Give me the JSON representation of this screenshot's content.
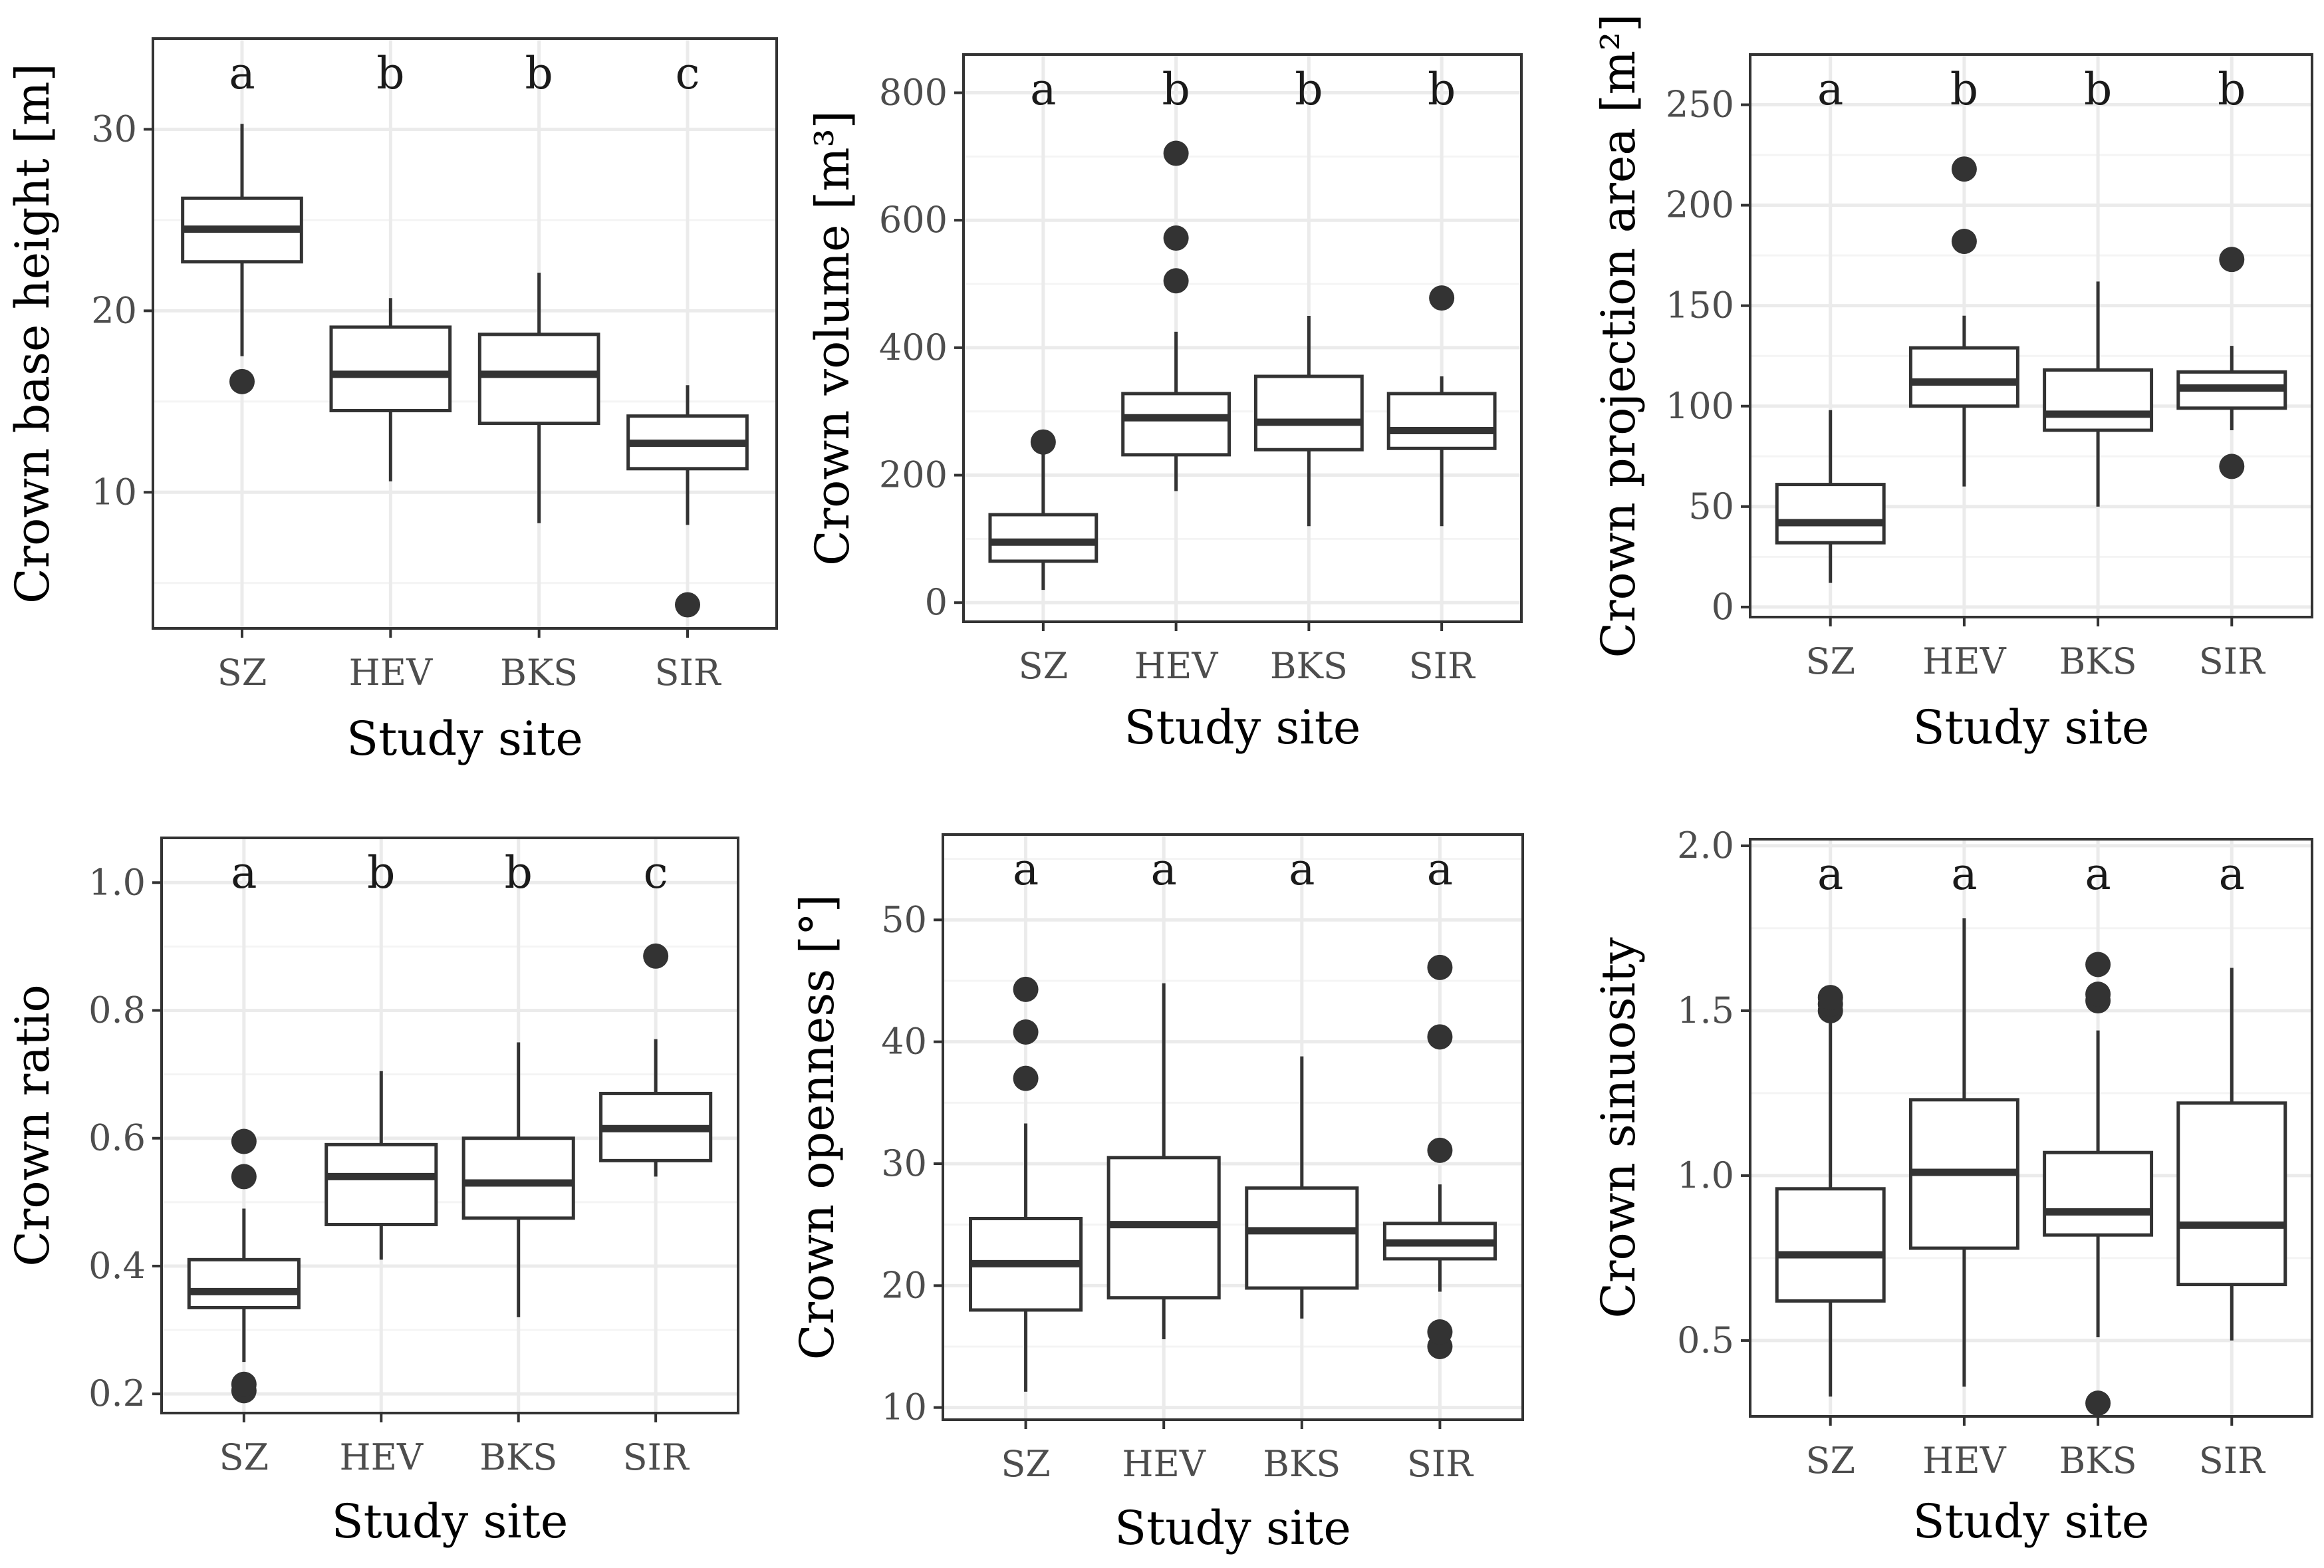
{
  "chart_data": [
    {
      "type": "boxplot",
      "ylabel": "Crown base height [m]",
      "xlabel": "Study site",
      "categories": [
        "SZ",
        "HEV",
        "BKS",
        "SIR"
      ],
      "ylim": [
        2.5,
        35
      ],
      "yticks": [
        10,
        20,
        30
      ],
      "ytick_labels": [
        "10",
        "20",
        "30"
      ],
      "grid": true,
      "boxes": [
        {
          "whisker_low": 17.5,
          "q1": 22.7,
          "median": 24.5,
          "q3": 26.2,
          "whisker_high": 30.3,
          "outliers": [
            16.1
          ]
        },
        {
          "whisker_low": 10.6,
          "q1": 14.5,
          "median": 16.5,
          "q3": 19.1,
          "whisker_high": 20.7,
          "outliers": []
        },
        {
          "whisker_low": 8.3,
          "q1": 13.8,
          "median": 16.5,
          "q3": 18.7,
          "whisker_high": 22.1,
          "outliers": []
        },
        {
          "whisker_low": 8.2,
          "q1": 11.3,
          "median": 12.7,
          "q3": 14.2,
          "whisker_high": 15.9,
          "outliers": [
            3.8
          ]
        }
      ],
      "significance": [
        "a",
        "b",
        "b",
        "c"
      ]
    },
    {
      "type": "boxplot",
      "ylabel": "Crown volume [m³]",
      "xlabel": "Study site",
      "categories": [
        "SZ",
        "HEV",
        "BKS",
        "SIR"
      ],
      "ylim": [
        -30,
        860
      ],
      "yticks": [
        0,
        200,
        400,
        600,
        800
      ],
      "ytick_labels": [
        "0",
        "200",
        "400",
        "600",
        "800"
      ],
      "grid": true,
      "boxes": [
        {
          "whisker_low": 20,
          "q1": 65,
          "median": 95,
          "q3": 138,
          "whisker_high": 240,
          "outliers": [
            252
          ]
        },
        {
          "whisker_low": 175,
          "q1": 232,
          "median": 290,
          "q3": 328,
          "whisker_high": 425,
          "outliers": [
            505,
            572,
            705
          ]
        },
        {
          "whisker_low": 120,
          "q1": 240,
          "median": 283,
          "q3": 355,
          "whisker_high": 450,
          "outliers": []
        },
        {
          "whisker_low": 120,
          "q1": 242,
          "median": 270,
          "q3": 328,
          "whisker_high": 355,
          "outliers": [
            478
          ]
        }
      ],
      "significance": [
        "a",
        "b",
        "b",
        "b"
      ]
    },
    {
      "type": "boxplot",
      "ylabel": "Crown projection area [m²]",
      "xlabel": "Study site",
      "categories": [
        "SZ",
        "HEV",
        "BKS",
        "SIR"
      ],
      "ylim": [
        -5,
        275
      ],
      "yticks": [
        0,
        50,
        100,
        150,
        200,
        250
      ],
      "ytick_labels": [
        "0",
        "50",
        "100",
        "150",
        "200",
        "250"
      ],
      "grid": true,
      "boxes": [
        {
          "whisker_low": 12,
          "q1": 32,
          "median": 42,
          "q3": 61,
          "whisker_high": 98,
          "outliers": []
        },
        {
          "whisker_low": 60,
          "q1": 100,
          "median": 112,
          "q3": 129,
          "whisker_high": 145,
          "outliers": [
            182,
            218
          ]
        },
        {
          "whisker_low": 50,
          "q1": 88,
          "median": 96,
          "q3": 118,
          "whisker_high": 162,
          "outliers": []
        },
        {
          "whisker_low": 88,
          "q1": 99,
          "median": 109,
          "q3": 117,
          "whisker_high": 130,
          "outliers": [
            70,
            173
          ]
        }
      ],
      "significance": [
        "a",
        "b",
        "b",
        "b"
      ]
    },
    {
      "type": "boxplot",
      "ylabel": "Crown ratio",
      "xlabel": "Study site",
      "categories": [
        "SZ",
        "HEV",
        "BKS",
        "SIR"
      ],
      "ylim": [
        0.17,
        1.07
      ],
      "yticks": [
        0.2,
        0.4,
        0.6,
        0.8,
        1.0
      ],
      "ytick_labels": [
        "0.2",
        "0.4",
        "0.6",
        "0.8",
        "1.0"
      ],
      "grid": true,
      "boxes": [
        {
          "whisker_low": 0.25,
          "q1": 0.335,
          "median": 0.36,
          "q3": 0.41,
          "whisker_high": 0.49,
          "outliers": [
            0.205,
            0.215,
            0.54,
            0.595
          ]
        },
        {
          "whisker_low": 0.41,
          "q1": 0.465,
          "median": 0.54,
          "q3": 0.59,
          "whisker_high": 0.705,
          "outliers": []
        },
        {
          "whisker_low": 0.32,
          "q1": 0.475,
          "median": 0.53,
          "q3": 0.6,
          "whisker_high": 0.75,
          "outliers": []
        },
        {
          "whisker_low": 0.54,
          "q1": 0.565,
          "median": 0.615,
          "q3": 0.67,
          "whisker_high": 0.755,
          "outliers": [
            0.885
          ]
        }
      ],
      "significance": [
        "a",
        "b",
        "b",
        "c"
      ]
    },
    {
      "type": "boxplot",
      "ylabel": "Crown openness [°]",
      "xlabel": "Study site",
      "categories": [
        "SZ",
        "HEV",
        "BKS",
        "SIR"
      ],
      "ylim": [
        9,
        57
      ],
      "yticks": [
        10,
        20,
        30,
        40,
        50
      ],
      "ytick_labels": [
        "10",
        "20",
        "30",
        "40",
        "50"
      ],
      "grid": true,
      "boxes": [
        {
          "whisker_low": 11.3,
          "q1": 18.0,
          "median": 21.8,
          "q3": 25.5,
          "whisker_high": 33.3,
          "outliers": [
            37.0,
            40.8,
            44.3
          ]
        },
        {
          "whisker_low": 15.6,
          "q1": 19.0,
          "median": 25.0,
          "q3": 30.5,
          "whisker_high": 44.8,
          "outliers": []
        },
        {
          "whisker_low": 17.3,
          "q1": 19.8,
          "median": 24.5,
          "q3": 28.0,
          "whisker_high": 38.8,
          "outliers": []
        },
        {
          "whisker_low": 19.5,
          "q1": 22.2,
          "median": 23.5,
          "q3": 25.1,
          "whisker_high": 28.3,
          "outliers": [
            15.0,
            16.2,
            31.1,
            40.4,
            46.1
          ]
        }
      ],
      "significance": [
        "a",
        "a",
        "a",
        "a"
      ]
    },
    {
      "type": "boxplot",
      "ylabel": "Crown sinuosity",
      "xlabel": "Study site",
      "categories": [
        "SZ",
        "HEV",
        "BKS",
        "SIR"
      ],
      "ylim": [
        0.27,
        2.02
      ],
      "yticks": [
        0.5,
        1.0,
        1.5,
        2.0
      ],
      "ytick_labels": [
        "0.5",
        "1.0",
        "1.5",
        "2.0"
      ],
      "grid": true,
      "boxes": [
        {
          "whisker_low": 0.33,
          "q1": 0.62,
          "median": 0.76,
          "q3": 0.96,
          "whisker_high": 1.47,
          "outliers": [
            1.5,
            1.52,
            1.54
          ]
        },
        {
          "whisker_low": 0.36,
          "q1": 0.78,
          "median": 1.01,
          "q3": 1.23,
          "whisker_high": 1.78,
          "outliers": []
        },
        {
          "whisker_low": 0.51,
          "q1": 0.82,
          "median": 0.89,
          "q3": 1.07,
          "whisker_high": 1.44,
          "outliers": [
            0.31,
            1.53,
            1.55,
            1.64
          ]
        },
        {
          "whisker_low": 0.5,
          "q1": 0.67,
          "median": 0.85,
          "q3": 1.22,
          "whisker_high": 1.63,
          "outliers": []
        }
      ],
      "significance": [
        "a",
        "a",
        "a",
        "a"
      ]
    }
  ],
  "colors": {
    "background": "#ffffff",
    "panel_border": "#333333",
    "grid_major": "#ebebeb",
    "grid_minor": "#f4f4f4",
    "box_line": "#333333",
    "outlier": "#333333"
  }
}
